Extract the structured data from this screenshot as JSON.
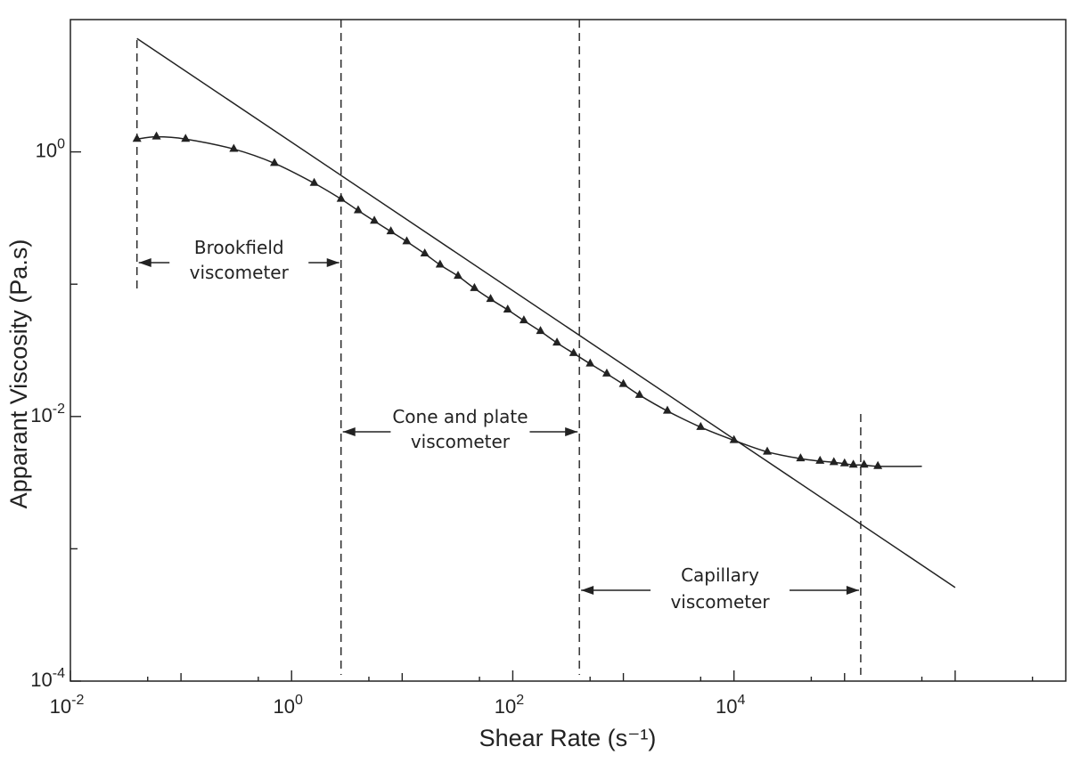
{
  "chart_data": {
    "type": "line",
    "xlabel": "Shear Rate (s⁻¹)",
    "ylabel": "Apparant Viscosity (Pa.s)",
    "x_scale": "log",
    "y_scale": "log",
    "xlim": [
      0.01,
      10000000
    ],
    "ylim": [
      0.0001,
      10
    ],
    "x_ticks": [
      {
        "value": 0.01,
        "base": "10",
        "exp": "-2"
      },
      {
        "value": 1,
        "base": "10",
        "exp": "0"
      },
      {
        "value": 100,
        "base": "10",
        "exp": "2"
      },
      {
        "value": 10000,
        "base": "10",
        "exp": "4"
      }
    ],
    "y_ticks": [
      {
        "value": 1,
        "base": "10",
        "exp": "0"
      },
      {
        "value": 0.01,
        "base": "10",
        "exp": "-2"
      },
      {
        "value": 0.0001,
        "base": "10",
        "exp": "-4"
      }
    ],
    "grid": false,
    "series": [
      {
        "style": "curve-with-triangle-markers",
        "x": [
          0.04,
          0.06,
          0.11,
          0.3,
          0.7,
          1.6,
          2.8,
          4,
          5.6,
          7.9,
          11,
          16,
          22,
          32,
          45,
          63,
          90,
          126,
          178,
          251,
          355,
          501,
          708,
          1000,
          1400,
          2500,
          5000,
          10000,
          20000,
          40000,
          60000,
          80000,
          100000,
          120000,
          150000,
          200000,
          500000
        ],
        "y": [
          1.25,
          1.3,
          1.25,
          1.05,
          0.82,
          0.58,
          0.44,
          0.36,
          0.3,
          0.25,
          0.21,
          0.17,
          0.14,
          0.115,
          0.093,
          0.077,
          0.064,
          0.053,
          0.044,
          0.036,
          0.03,
          0.025,
          0.021,
          0.0175,
          0.0145,
          0.011,
          0.0083,
          0.0066,
          0.0054,
          0.0048,
          0.0046,
          0.0045,
          0.0044,
          0.0043,
          0.0043,
          0.0042,
          0.0042
        ]
      },
      {
        "style": "power-law-line",
        "x": [
          0.04,
          1000000
        ],
        "y": [
          7.2,
          0.00051
        ]
      }
    ],
    "regions": [
      {
        "label_lines": [
          "Brookfield",
          "viscometer"
        ],
        "x_start": 0.04,
        "x_end": 2.8
      },
      {
        "label_lines": [
          "Cone and plate",
          "viscometer"
        ],
        "x_start": 2.8,
        "x_end": 400
      },
      {
        "label_lines": [
          "Capillary",
          "viscometer"
        ],
        "x_start": 400,
        "x_end": 140000
      }
    ]
  }
}
